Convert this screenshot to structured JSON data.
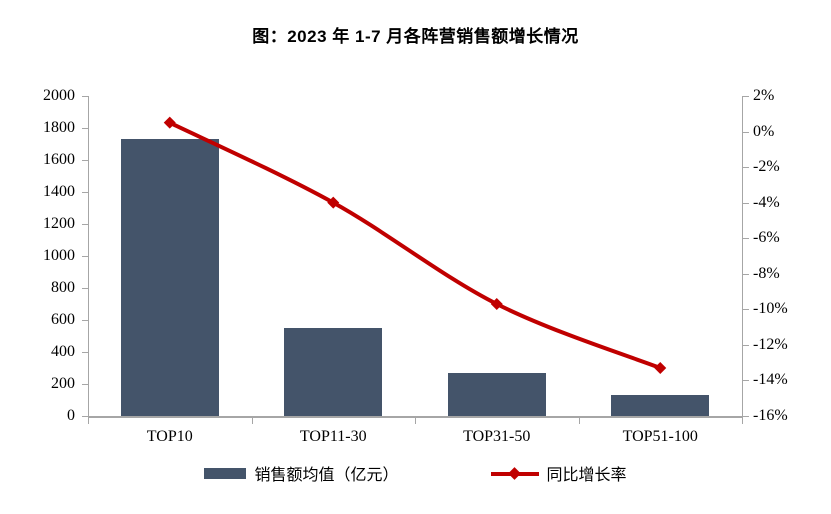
{
  "title": "图：2023 年 1-7 月各阵营销售额增长情况",
  "chart_data": {
    "type": "combo-bar-line",
    "categories": [
      "TOP10",
      "TOP11-30",
      "TOP31-50",
      "TOP51-100"
    ],
    "series": [
      {
        "name": "销售额均值（亿元）",
        "type": "bar",
        "axis": "left",
        "color": "#44546A",
        "values": [
          1730,
          550,
          270,
          130
        ]
      },
      {
        "name": "同比增长率",
        "type": "line",
        "axis": "right",
        "color": "#C00000",
        "marker": "diamond",
        "values": [
          0.5,
          -4.0,
          -9.7,
          -13.3
        ]
      }
    ],
    "left_axis": {
      "min": 0,
      "max": 2000,
      "step": 200,
      "tick_labels": [
        "0",
        "200",
        "400",
        "600",
        "800",
        "1000",
        "1200",
        "1400",
        "1600",
        "1800",
        "2000"
      ]
    },
    "right_axis": {
      "min": -16,
      "max": 2,
      "step": 2,
      "tick_labels": [
        "-16%",
        "-14%",
        "-12%",
        "-10%",
        "-8%",
        "-6%",
        "-4%",
        "-2%",
        "0%",
        "2%"
      ]
    },
    "grid": false,
    "legend_position": "bottom",
    "axis_color": "#A6A6A6",
    "text_color": "#000000",
    "background": "#FFFFFF"
  }
}
